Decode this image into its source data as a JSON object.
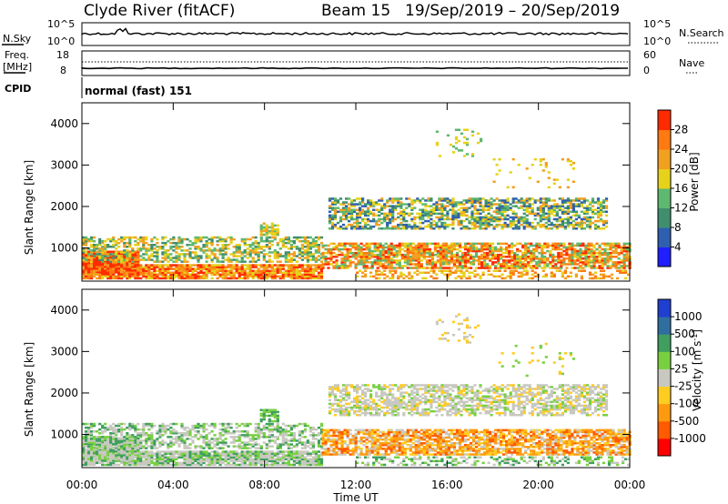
{
  "header": {
    "station": "Clyde River (fitACF)",
    "beam": "Beam 15",
    "dates": "19/Sep/2019 – 20/Sep/2019"
  },
  "noise_panel": {
    "left_label": "N.Sky",
    "left_ticks": [
      "10^5",
      "10^0"
    ],
    "right_label": "N.Search",
    "right_ticks": [
      "10^5",
      "10^0"
    ]
  },
  "freq_panel": {
    "left_label_1": "Freq.",
    "left_label_2": "[MHz]",
    "left_ticks": [
      "18",
      "8"
    ],
    "right_label": "Nave",
    "right_ticks": [
      "60",
      "0"
    ]
  },
  "cpid_panel": {
    "label": "CPID",
    "value": "normal (fast) 151"
  },
  "colors": {
    "power": [
      "#1f1fff",
      "#2f5fb0",
      "#3f8f6f",
      "#5fb86f",
      "#e6d21a",
      "#f2a020",
      "#ff7a10",
      "#ff2a00"
    ],
    "velocity": [
      "#ff0000",
      "#ff5a00",
      "#ff9a10",
      "#ffcc22",
      "#c8c8c0",
      "#78d040",
      "#3f9f5f",
      "#2f6fa0",
      "#1f3fd0"
    ]
  },
  "chart_data": [
    {
      "type": "heatmap",
      "title": "",
      "xlabel": "",
      "ylabel": "Slant Range [km]",
      "x_ticks": [
        "00:00",
        "04:00",
        "08:00",
        "12:00",
        "16:00",
        "20:00",
        "00:00"
      ],
      "y_ticks": [
        1000,
        2000,
        3000,
        4000
      ],
      "ylim": [
        200,
        4500
      ],
      "xlim_hours": [
        0,
        24
      ],
      "colorbar": {
        "label": "Power [dB]",
        "ticks": [
          4,
          8,
          12,
          16,
          20,
          24,
          28
        ],
        "range": [
          0,
          32
        ]
      }
    },
    {
      "type": "heatmap",
      "title": "",
      "xlabel": "Time UT",
      "ylabel": "Slant Range [km]",
      "x_ticks": [
        "00:00",
        "04:00",
        "08:00",
        "12:00",
        "16:00",
        "20:00",
        "00:00"
      ],
      "y_ticks": [
        1000,
        2000,
        3000,
        4000
      ],
      "ylim": [
        200,
        4500
      ],
      "xlim_hours": [
        0,
        24
      ],
      "colorbar": {
        "label": "Velocity [m s^-1]",
        "ticks": [
          "1000",
          "500",
          "100",
          "25",
          "-25",
          "-100",
          "-500",
          "-1000"
        ]
      }
    }
  ]
}
